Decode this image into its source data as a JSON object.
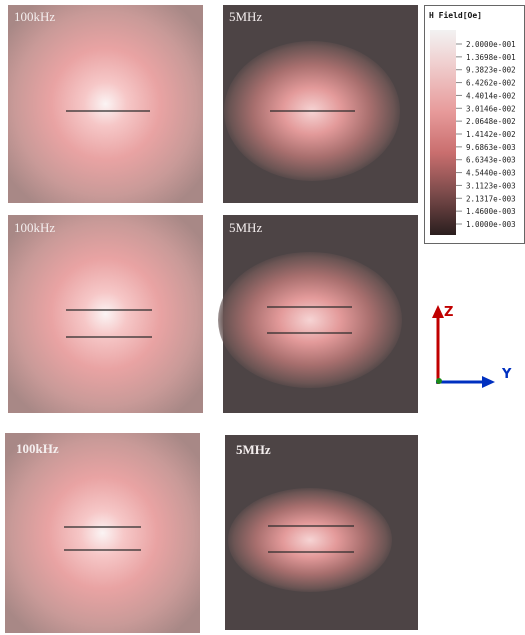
{
  "panels": [
    {
      "label": "100kHz"
    },
    {
      "label": "5MHz"
    },
    {
      "label": "100kHz"
    },
    {
      "label": "5MHz"
    },
    {
      "label": "100kHz"
    },
    {
      "label": "5MHz"
    }
  ],
  "legend": {
    "title": "H Field[Oe]",
    "values": [
      "2.0000e-001",
      "1.3698e-001",
      "9.3823e-002",
      "6.4262e-002",
      "4.4014e-002",
      "3.0146e-002",
      "2.0648e-002",
      "1.4142e-002",
      "9.6863e-003",
      "6.6343e-003",
      "4.5440e-003",
      "3.1123e-003",
      "2.1317e-003",
      "1.4600e-003",
      "1.0000e-003"
    ]
  },
  "axes": {
    "z": "Z",
    "y": "Y"
  }
}
